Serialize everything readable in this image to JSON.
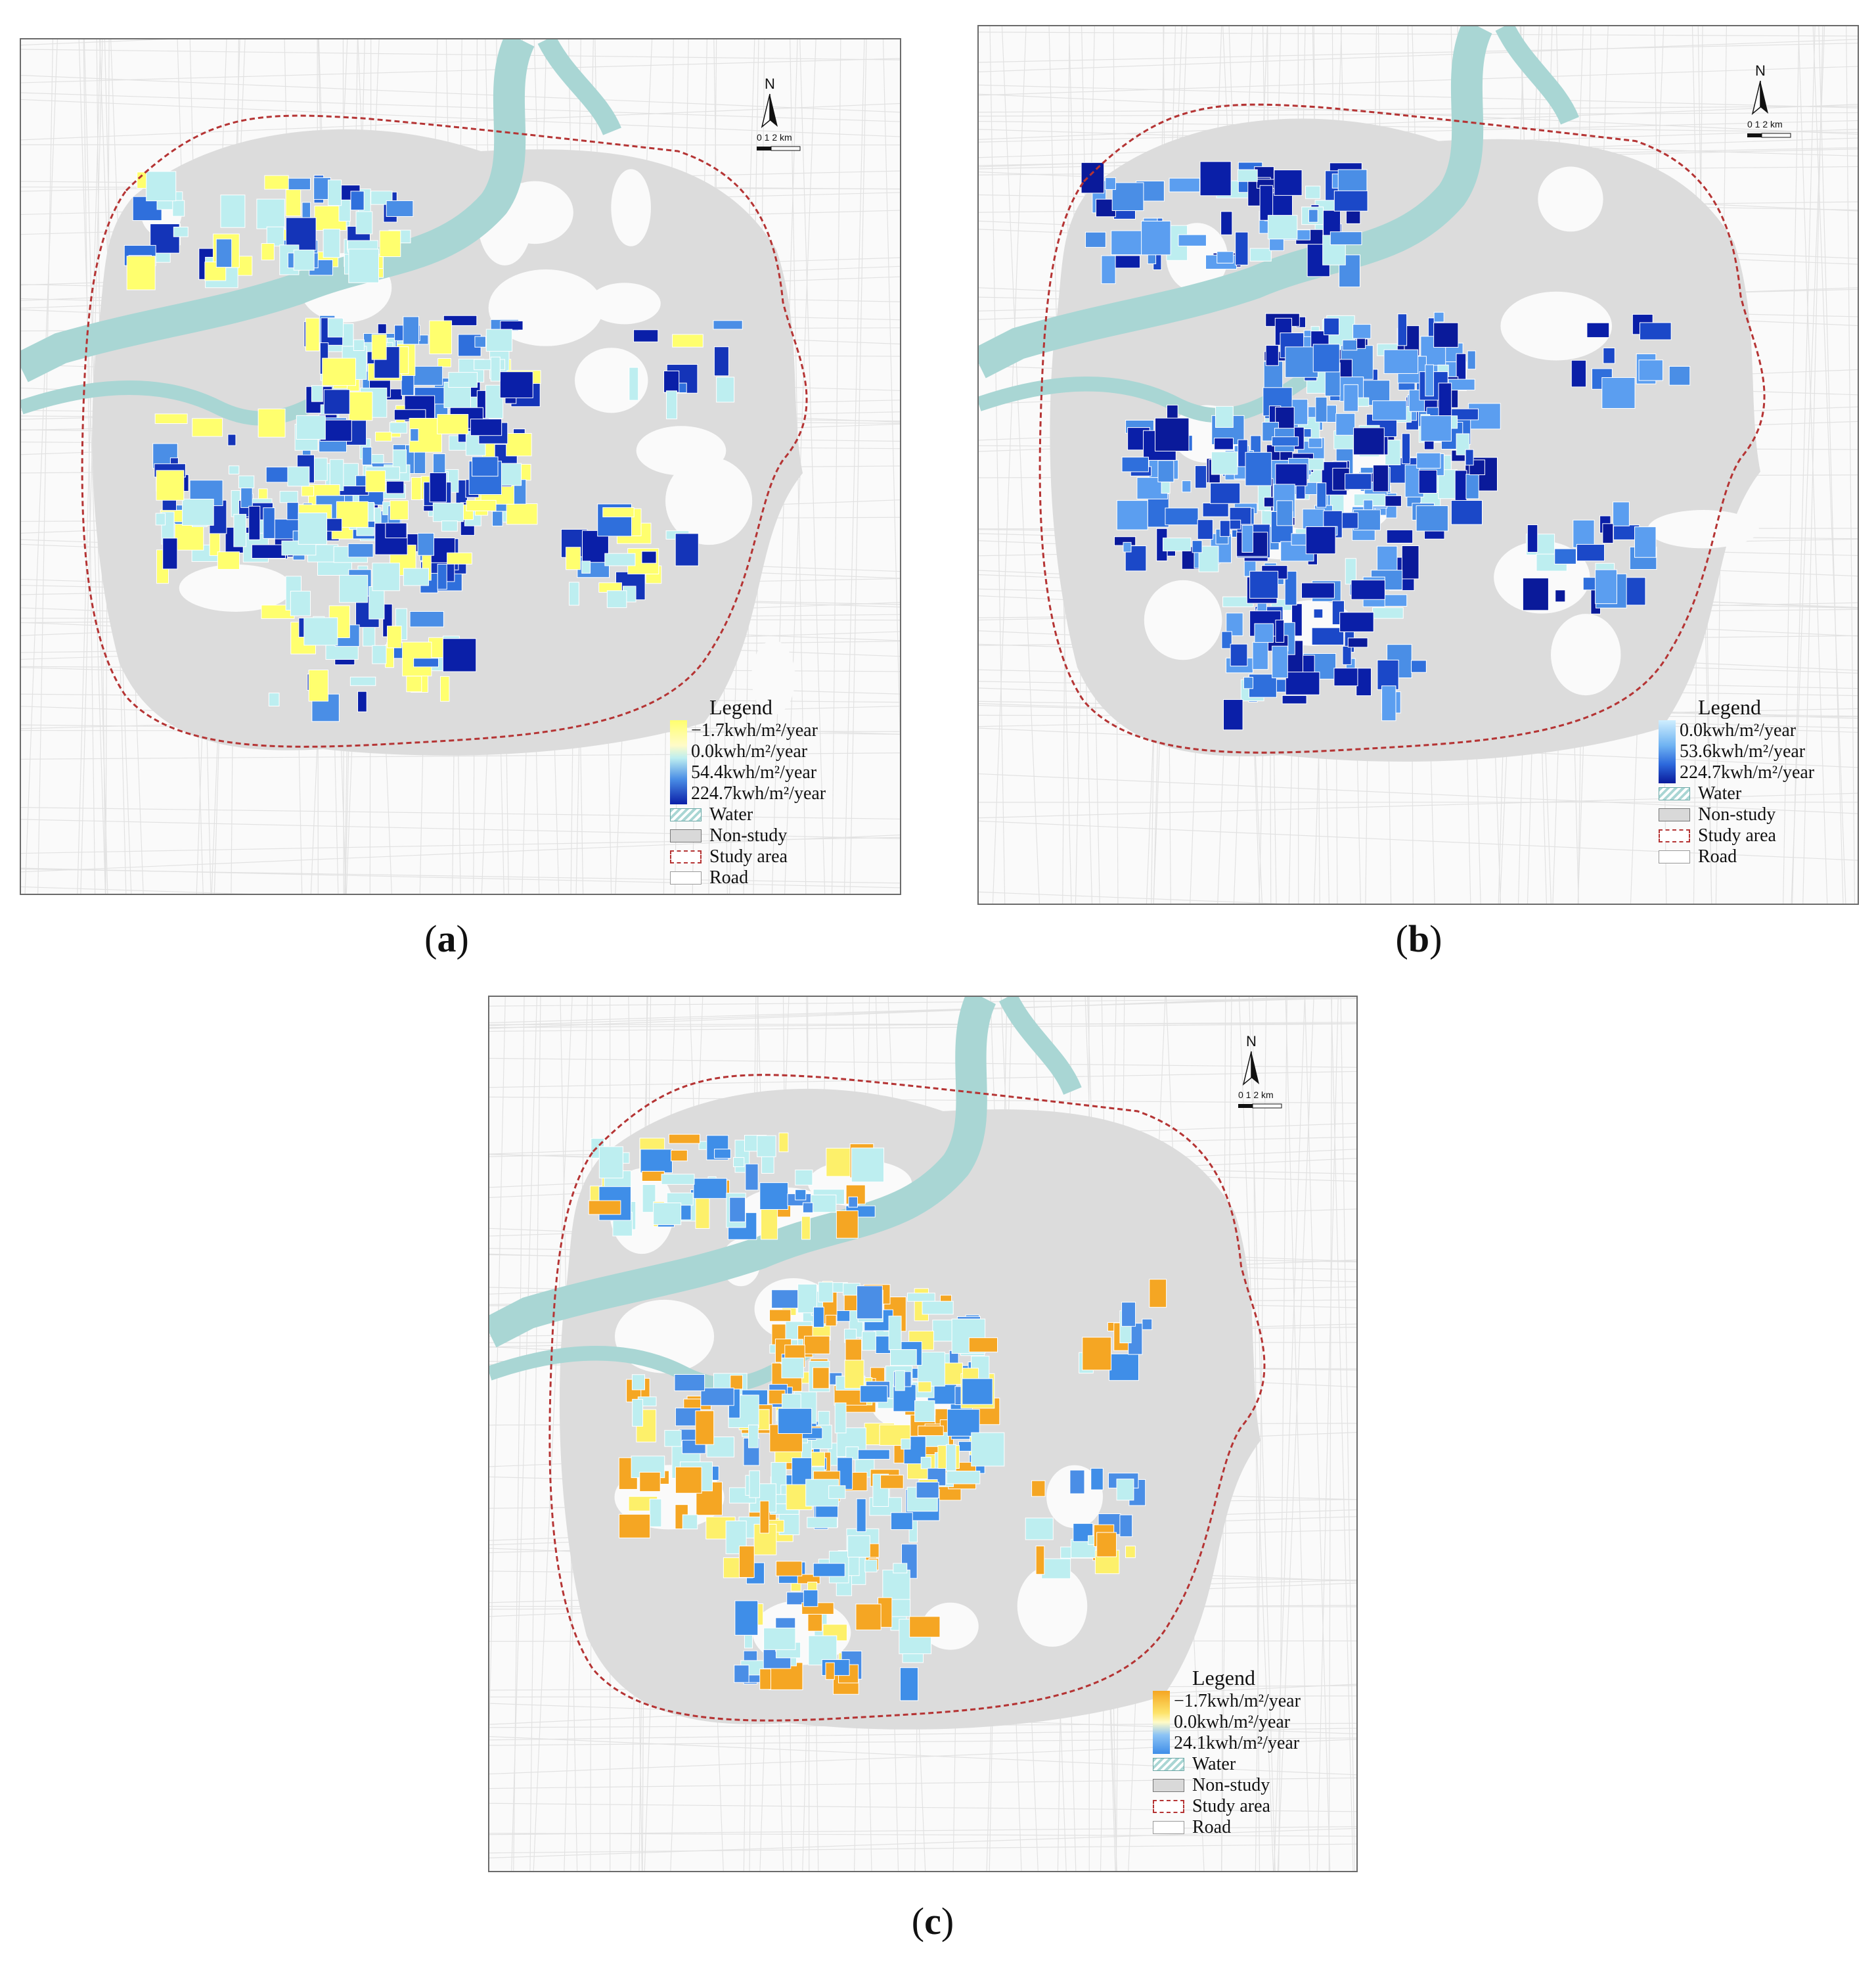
{
  "colors": {
    "water": "#a9d6d4",
    "non_study": "#dcdcdc",
    "study_boundary": "#b53434",
    "road": "#ffffff",
    "neutral_block": "#bdeef0"
  },
  "north_arrow": {
    "letter": "N",
    "scale_labels": "0 1 2",
    "unit": "km"
  },
  "panels": [
    {
      "caption_letter": "a",
      "legend": {
        "title": "Legend",
        "ramp_colors": [
          "#ffff6e",
          "#fffbc8",
          "#bdeef0",
          "#4a8ee6",
          "#0a1fa8"
        ],
        "stops": [
          "−1.7kwh/m²/year",
          "0.0kwh/m²/year",
          "54.4kwh/m²/year",
          "224.7kwh/m²/year"
        ],
        "symbols": [
          {
            "icon": "water-icon",
            "label": "Water"
          },
          {
            "icon": "non-study-icon",
            "label": "Non-study"
          },
          {
            "icon": "study-area-icon",
            "label": "Study area"
          },
          {
            "icon": "road-icon",
            "label": "Road"
          }
        ]
      },
      "block_palette": [
        "#ffff6e",
        "#ffff6e",
        "#bdeef0",
        "#bdeef0",
        "#bdeef0",
        "#4a8ee6",
        "#2f6fdc",
        "#1434b8",
        "#0a1fa8"
      ]
    },
    {
      "caption_letter": "b",
      "legend": {
        "title": "Legend",
        "ramp_colors": [
          "#cfeefe",
          "#6fb3f2",
          "#2c68dc",
          "#0a1a9a"
        ],
        "stops": [
          "0.0kwh/m²/year",
          "53.6kwh/m²/year",
          "224.7kwh/m²/year"
        ],
        "symbols": [
          {
            "icon": "water-icon",
            "label": "Water"
          },
          {
            "icon": "non-study-icon",
            "label": "Non-study"
          },
          {
            "icon": "study-area-icon",
            "label": "Study area"
          },
          {
            "icon": "road-icon",
            "label": "Road"
          }
        ]
      },
      "block_palette": [
        "#bdeef0",
        "#5b9ef0",
        "#5b9ef0",
        "#4a8ee6",
        "#2f6fdc",
        "#1b48c8",
        "#0a1fa8",
        "#0a1a9a"
      ]
    },
    {
      "caption_letter": "c",
      "legend": {
        "title": "Legend",
        "ramp_colors": [
          "#f5a623",
          "#fde36a",
          "#fffbc8",
          "#8cc3f5",
          "#3f8ee8"
        ],
        "stops": [
          "−1.7kwh/m²/year",
          "0.0kwh/m²/year",
          "24.1kwh/m²/year"
        ],
        "symbols": [
          {
            "icon": "water-icon",
            "label": "Water"
          },
          {
            "icon": "non-study-icon",
            "label": "Non-study"
          },
          {
            "icon": "study-area-icon",
            "label": "Study area"
          },
          {
            "icon": "road-icon",
            "label": "Road"
          }
        ]
      },
      "block_palette": [
        "#f5a623",
        "#f5a623",
        "#fdf06a",
        "#bdeef0",
        "#bdeef0",
        "#bdeef0",
        "#4a8ee6",
        "#3f8ee8"
      ]
    }
  ]
}
